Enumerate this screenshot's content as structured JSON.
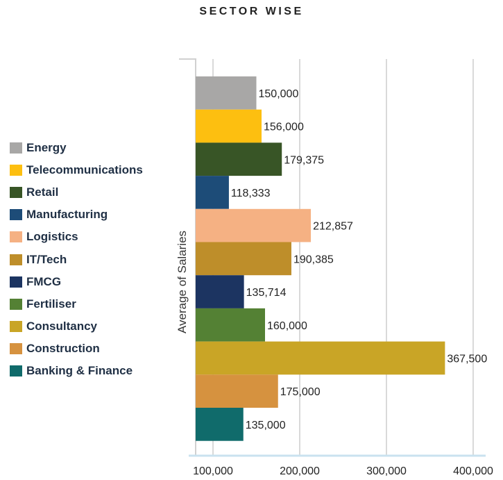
{
  "chart_data": {
    "type": "bar",
    "orientation": "horizontal",
    "title": "SECTOR WISE",
    "ylabel": "Average of Salaries",
    "xlabel": "",
    "xlim": [
      0,
      400000
    ],
    "xticks": [
      100000,
      200000,
      300000,
      400000
    ],
    "xtick_labels": [
      "100,000",
      "200,000",
      "300,000",
      "400,000"
    ],
    "grid": true,
    "legend_position": "left",
    "categories": [
      "Energy",
      "Telecommunications",
      "Retail",
      "Manufacturing",
      "Logistics",
      "IT/Tech",
      "FMCG",
      "Fertiliser",
      "Consultancy",
      "Construction",
      "Banking & Finance"
    ],
    "values": [
      150000,
      156000,
      179375,
      118333,
      212857,
      190385,
      135714,
      160000,
      367500,
      175000,
      135000
    ],
    "value_labels": [
      "150,000",
      "156,000",
      "179,375",
      "118,333",
      "212,857",
      "190,385",
      "135,714",
      "160,000",
      "367,500",
      "175,000",
      "135,000"
    ],
    "colors": [
      "#a8a7a6",
      "#fdbf10",
      "#385526",
      "#1d4c78",
      "#f5b183",
      "#be8e2a",
      "#1c3461",
      "#548134",
      "#c9a526",
      "#d6923f",
      "#106b6b"
    ]
  }
}
